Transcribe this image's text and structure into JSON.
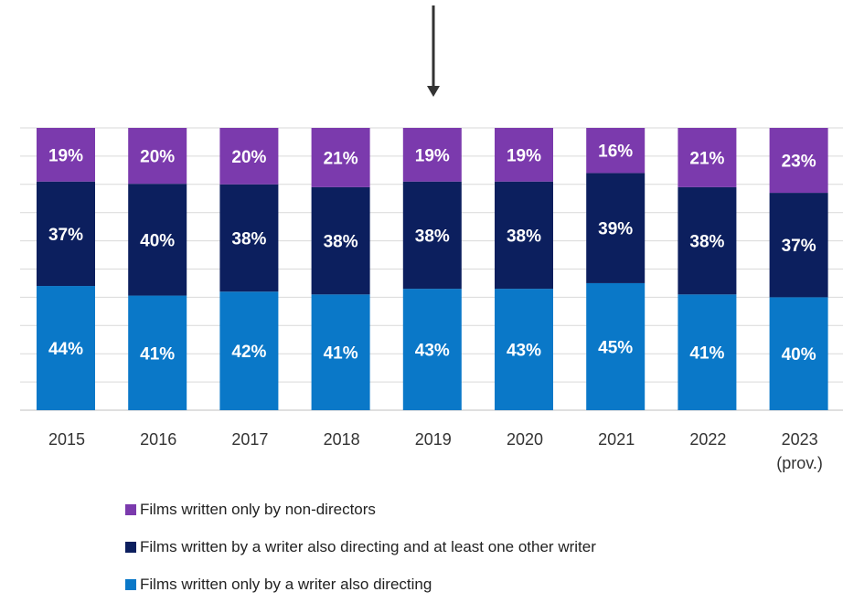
{
  "chart_data": {
    "type": "bar",
    "stacked": true,
    "percent_stacked": true,
    "categories": [
      "2015",
      "2016",
      "2017",
      "2018",
      "2019",
      "2020",
      "2021",
      "2022",
      "2023\n(prov.)"
    ],
    "category_lines": [
      [
        "2015"
      ],
      [
        "2016"
      ],
      [
        "2017"
      ],
      [
        "2018"
      ],
      [
        "2019"
      ],
      [
        "2020"
      ],
      [
        "2021"
      ],
      [
        "2022"
      ],
      [
        "2023",
        "(prov.)"
      ]
    ],
    "series": [
      {
        "name": "Films written only by a writer also directing",
        "color": "#0a78c8",
        "values": [
          44,
          41,
          42,
          41,
          43,
          43,
          45,
          41,
          40
        ]
      },
      {
        "name": "Films written by a writer also directing and at least one other writer",
        "color": "#0c1f5e",
        "values": [
          37,
          40,
          38,
          38,
          38,
          38,
          39,
          38,
          37
        ]
      },
      {
        "name": "Films written only by non-directors",
        "color": "#7b3aad",
        "values": [
          19,
          20,
          20,
          21,
          19,
          19,
          16,
          21,
          23
        ]
      }
    ],
    "value_suffix": "%",
    "ylim": [
      0,
      100
    ],
    "grid": true,
    "legend_position": "bottom"
  },
  "legend_order": [
    2,
    1,
    0
  ],
  "decorations": {
    "arrow": "down-arrow-icon"
  }
}
